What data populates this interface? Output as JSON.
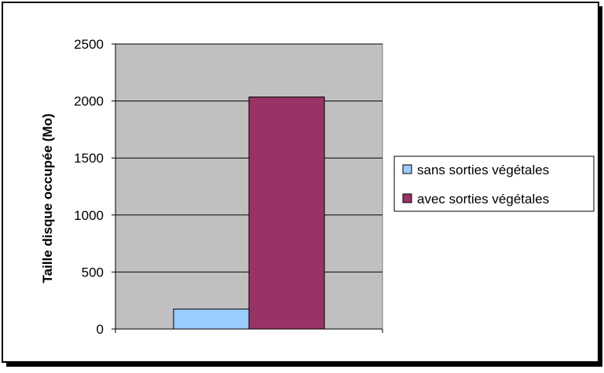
{
  "chart_data": {
    "type": "bar",
    "title": "",
    "xlabel": "",
    "ylabel": "Taille disque occupée (Mo)",
    "ylim": [
      0,
      2500
    ],
    "yticks": [
      0,
      500,
      1000,
      1500,
      2000,
      2500
    ],
    "grid": true,
    "legend_position": "right",
    "categories": [
      ""
    ],
    "series": [
      {
        "name": "sans sorties végétales",
        "values": [
          175
        ],
        "color": "#99CCFF"
      },
      {
        "name": "avec sorties végétales",
        "values": [
          2035
        ],
        "color": "#993366"
      }
    ],
    "plot_background": "#C0C0C0"
  }
}
